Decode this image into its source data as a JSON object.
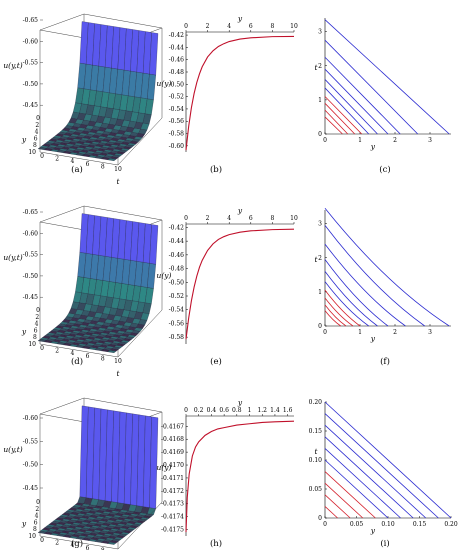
{
  "figure": {
    "captions": [
      "(a)",
      "(b)",
      "(c)",
      "(d)",
      "(e)",
      "(f)",
      "(g)",
      "(h)",
      "(i)"
    ]
  },
  "colors": {
    "curve": "#c0102a",
    "char_red": "#d4202c",
    "char_blue": "#2b2bd0",
    "surface_high": "#5a58ee",
    "surface_low": "#2e8a86",
    "surface_dark": "#3c2a4a"
  },
  "chart_data": [
    {
      "id": "a",
      "type": "surface3d",
      "zlabel": "u(y,t)",
      "ylabel": "y",
      "xlabel": "t",
      "z_ticks": [
        "-0.65",
        "-0.60",
        "-0.55",
        "-0.50",
        "-0.45"
      ],
      "y_ticks": [
        "0",
        "2",
        "4",
        "6",
        "8",
        "10"
      ],
      "t_ticks": [
        "0",
        "2",
        "4",
        "6",
        "8",
        "10"
      ],
      "zlim": [
        -0.65,
        -0.42
      ],
      "decay_rate": 1.1
    },
    {
      "id": "b",
      "type": "line",
      "xlabel": "y",
      "ylabel": "u(y)",
      "x_ticks": [
        "0",
        "2",
        "4",
        "6",
        "8",
        "10"
      ],
      "y_ticks": [
        "-0.42",
        "-0.44",
        "-0.46",
        "-0.48",
        "-0.50",
        "-0.52",
        "-0.54",
        "-0.56",
        "-0.58",
        "-0.60"
      ],
      "xlim": [
        0,
        10
      ],
      "ylim": [
        -0.61,
        -0.415
      ],
      "x": [
        0,
        0.25,
        0.5,
        0.75,
        1,
        1.25,
        1.5,
        2,
        2.5,
        3,
        3.5,
        4,
        5,
        6,
        8,
        10
      ],
      "y": [
        -0.607,
        -0.568,
        -0.538,
        -0.515,
        -0.497,
        -0.483,
        -0.4715,
        -0.4555,
        -0.4455,
        -0.4385,
        -0.434,
        -0.4305,
        -0.4265,
        -0.4245,
        -0.4225,
        -0.4222
      ]
    },
    {
      "id": "c",
      "type": "line",
      "xlabel": "y",
      "ylabel": "t",
      "x_ticks": [
        "0",
        "1",
        "2",
        "3"
      ],
      "y_ticks": [
        "0",
        "1",
        "2",
        "3"
      ],
      "xlim": [
        0,
        3.6
      ],
      "ylim": [
        0,
        3.4
      ],
      "series": [
        {
          "x": [
            0.5,
            0
          ],
          "y": [
            0,
            0.5
          ],
          "color": "red"
        },
        {
          "x": [
            0.65,
            0
          ],
          "y": [
            0,
            0.7
          ],
          "color": "red"
        },
        {
          "x": [
            0.85,
            0
          ],
          "y": [
            0,
            0.9
          ],
          "color": "red"
        },
        {
          "x": [
            1.05,
            0
          ],
          "y": [
            0,
            1.1
          ],
          "color": "red"
        },
        {
          "x": [
            1.25,
            0
          ],
          "y": [
            0,
            1.35
          ],
          "color": "blue"
        },
        {
          "x": [
            1.5,
            0
          ],
          "y": [
            0,
            1.6
          ],
          "color": "blue"
        },
        {
          "x": [
            1.8,
            0
          ],
          "y": [
            0,
            1.9
          ],
          "color": "blue"
        },
        {
          "x": [
            2.15,
            0
          ],
          "y": [
            0,
            2.25
          ],
          "color": "blue"
        },
        {
          "x": [
            2.65,
            0
          ],
          "y": [
            0,
            2.75
          ],
          "color": "blue"
        },
        {
          "x": [
            3.55,
            0
          ],
          "y": [
            0,
            3.35
          ],
          "color": "blue"
        }
      ]
    },
    {
      "id": "d",
      "type": "surface3d",
      "zlabel": "u(y,t)",
      "ylabel": "y",
      "xlabel": "t",
      "z_ticks": [
        "-0.65",
        "-0.60",
        "-0.55",
        "-0.50",
        "-0.45"
      ],
      "y_ticks": [
        "0",
        "2",
        "4",
        "6",
        "8",
        "10"
      ],
      "t_ticks": [
        "0",
        "2",
        "4",
        "6",
        "8",
        "10"
      ],
      "zlim": [
        -0.65,
        -0.42
      ],
      "decay_rate": 1.0
    },
    {
      "id": "e",
      "type": "line",
      "xlabel": "y",
      "ylabel": "u(y)",
      "x_ticks": [
        "0",
        "2",
        "4",
        "6",
        "8",
        "10"
      ],
      "y_ticks": [
        "-0.42",
        "-0.44",
        "-0.46",
        "-0.48",
        "-0.50",
        "-0.52",
        "-0.54",
        "-0.56",
        "-0.58"
      ],
      "xlim": [
        0,
        10
      ],
      "ylim": [
        -0.59,
        -0.415
      ],
      "x": [
        0,
        0.25,
        0.5,
        0.75,
        1,
        1.25,
        1.5,
        2,
        2.5,
        3,
        3.5,
        4,
        5,
        6,
        8,
        10
      ],
      "y": [
        -0.583,
        -0.552,
        -0.527,
        -0.507,
        -0.491,
        -0.478,
        -0.468,
        -0.4535,
        -0.444,
        -0.4375,
        -0.4335,
        -0.4305,
        -0.427,
        -0.425,
        -0.4232,
        -0.4225
      ]
    },
    {
      "id": "f",
      "type": "line",
      "xlabel": "y",
      "ylabel": "t",
      "x_ticks": [
        "0",
        "1",
        "2",
        "3"
      ],
      "y_ticks": [
        "0",
        "1",
        "2",
        "3"
      ],
      "xlim": [
        0,
        3.6
      ],
      "ylim": [
        0,
        3.4
      ],
      "series": [
        {
          "x": [
            0.45,
            0
          ],
          "y": [
            0,
            0.45
          ],
          "color": "red",
          "curv": 0.15
        },
        {
          "x": [
            0.6,
            0
          ],
          "y": [
            0,
            0.62
          ],
          "color": "red",
          "curv": 0.15
        },
        {
          "x": [
            0.8,
            0
          ],
          "y": [
            0,
            0.82
          ],
          "color": "red",
          "curv": 0.15
        },
        {
          "x": [
            1.0,
            0
          ],
          "y": [
            0,
            1.05
          ],
          "color": "red",
          "curv": 0.15
        },
        {
          "x": [
            1.25,
            0
          ],
          "y": [
            0,
            1.3
          ],
          "color": "blue",
          "curv": 0.15
        },
        {
          "x": [
            1.5,
            0
          ],
          "y": [
            0,
            1.6
          ],
          "color": "blue",
          "curv": 0.15
        },
        {
          "x": [
            1.8,
            0
          ],
          "y": [
            0,
            1.95
          ],
          "color": "blue",
          "curv": 0.15
        },
        {
          "x": [
            2.3,
            0
          ],
          "y": [
            0,
            2.4
          ],
          "color": "blue",
          "curv": 0.15
        },
        {
          "x": [
            2.85,
            0
          ],
          "y": [
            0,
            2.95
          ],
          "color": "blue",
          "curv": 0.15
        },
        {
          "x": [
            3.55,
            0
          ],
          "y": [
            0,
            3.45
          ],
          "color": "blue",
          "curv": 0.15
        }
      ]
    },
    {
      "id": "g",
      "type": "surface3d",
      "zlabel": "u(y,t)",
      "ylabel": "y",
      "xlabel": "t",
      "z_ticks": [
        "-0.60",
        "-0.55",
        "-0.50",
        "-0.45"
      ],
      "y_ticks": [
        "0",
        "2",
        "4",
        "6",
        "8",
        "10"
      ],
      "t_ticks": [
        "0",
        "2",
        "4",
        "6",
        "8",
        "10"
      ],
      "zlim": [
        -0.63,
        -0.42
      ],
      "decay_rate": 6.0
    },
    {
      "id": "h",
      "type": "line",
      "xlabel": "y",
      "ylabel": "u(y)",
      "x_ticks": [
        "0",
        "0.2",
        "0.4",
        "0.6",
        "0.8",
        "1",
        "1.2",
        "1.4",
        "1.6"
      ],
      "y_ticks": [
        "-0.4167",
        "-0.4168",
        "-0.4169",
        "-0.4170",
        "-0.4171",
        "-0.4172",
        "-0.4173",
        "-0.4174",
        "-0.4175"
      ],
      "xlim": [
        0,
        1.7
      ],
      "ylim": [
        -0.41755,
        -0.41662
      ],
      "x": [
        0,
        0.02,
        0.05,
        0.1,
        0.15,
        0.2,
        0.3,
        0.4,
        0.5,
        0.6,
        0.8,
        1.0,
        1.2,
        1.4,
        1.7
      ],
      "y": [
        -0.41752,
        -0.41725,
        -0.41707,
        -0.41693,
        -0.41686,
        -0.41682,
        -0.41677,
        -0.41674,
        -0.41672,
        -0.41671,
        -0.41669,
        -0.41668,
        -0.41667,
        -0.416665,
        -0.41666
      ]
    },
    {
      "id": "i",
      "type": "line",
      "xlabel": "y",
      "ylabel": "t",
      "x_ticks": [
        "0",
        "0.05",
        "0.10",
        "0.15",
        "0.20"
      ],
      "y_ticks": [
        "0",
        "0.05",
        "0.10",
        "0.15",
        "0.20"
      ],
      "xlim": [
        0,
        0.2
      ],
      "ylim": [
        0,
        0.2
      ],
      "series": [
        {
          "x": [
            0.02,
            0
          ],
          "y": [
            0,
            0.02
          ],
          "color": "red"
        },
        {
          "x": [
            0.04,
            0
          ],
          "y": [
            0,
            0.04
          ],
          "color": "red"
        },
        {
          "x": [
            0.06,
            0
          ],
          "y": [
            0,
            0.06
          ],
          "color": "red"
        },
        {
          "x": [
            0.08,
            0
          ],
          "y": [
            0,
            0.08
          ],
          "color": "red"
        },
        {
          "x": [
            0.1,
            0
          ],
          "y": [
            0,
            0.1
          ],
          "color": "blue"
        },
        {
          "x": [
            0.12,
            0
          ],
          "y": [
            0,
            0.12
          ],
          "color": "blue"
        },
        {
          "x": [
            0.14,
            0
          ],
          "y": [
            0,
            0.14
          ],
          "color": "blue"
        },
        {
          "x": [
            0.16,
            0
          ],
          "y": [
            0,
            0.16
          ],
          "color": "blue"
        },
        {
          "x": [
            0.18,
            0
          ],
          "y": [
            0,
            0.18
          ],
          "color": "blue"
        },
        {
          "x": [
            0.2,
            0
          ],
          "y": [
            0,
            0.2
          ],
          "color": "blue"
        }
      ]
    }
  ]
}
